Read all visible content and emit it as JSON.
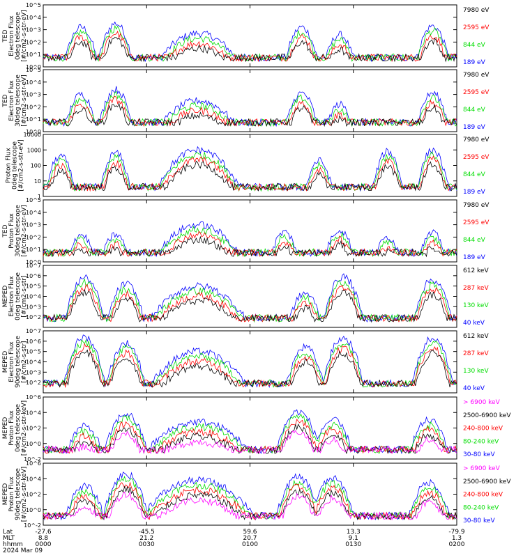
{
  "chart_data": {
    "type": "line",
    "date_label": "2024 Mar 09",
    "x_axis": {
      "row_labels": [
        "Lat",
        "MLT",
        "hhmm"
      ],
      "ticks": [
        {
          "lat": "-27.6",
          "mlt": "8.8",
          "hhmm": "0000"
        },
        {
          "lat": "-45.5",
          "mlt": "21.2",
          "hhmm": "0030"
        },
        {
          "lat": "59.6",
          "mlt": "20.7",
          "hhmm": "0100"
        },
        {
          "lat": "13.3",
          "mlt": "9.1",
          "hhmm": "0130"
        },
        {
          "lat": "-79.9",
          "mlt": "1.3",
          "hhmm": "0200"
        }
      ],
      "range_minutes": [
        0,
        120
      ]
    },
    "panels": [
      {
        "ylabel": [
          "TED",
          "Electron Flux",
          "0deg telescope",
          "[#/cm2-s-str-eV]"
        ],
        "scale": "log",
        "ylim": [
          1,
          100000
        ],
        "yticks": [
          {
            "v": 1,
            "t": "10^0"
          },
          {
            "v": 10,
            "t": "10^1"
          },
          {
            "v": 100,
            "t": "10^2"
          },
          {
            "v": 1000,
            "t": "10^3"
          },
          {
            "v": 10000,
            "t": "10^4"
          },
          {
            "v": 100000,
            "t": "10^5"
          }
        ],
        "series": [
          {
            "name": "7980 eV",
            "color": "#000000"
          },
          {
            "name": "2595 eV",
            "color": "#ff0000"
          },
          {
            "name": "844 eV",
            "color": "#00dd00"
          },
          {
            "name": "189 eV",
            "color": "#0000ff"
          }
        ]
      },
      {
        "ylabel": [
          "TED",
          "Electron Flux",
          "30deg telescope",
          "[#/cm2-s-str-eV]"
        ],
        "scale": "log",
        "ylim": [
          1,
          100000
        ],
        "yticks": [
          {
            "v": 1,
            "t": "10^0"
          },
          {
            "v": 10,
            "t": "10^1"
          },
          {
            "v": 100,
            "t": "10^2"
          },
          {
            "v": 1000,
            "t": "10^3"
          },
          {
            "v": 10000,
            "t": "10^4"
          },
          {
            "v": 100000,
            "t": "10^5"
          }
        ],
        "series": [
          {
            "name": "7980 eV",
            "color": "#000000"
          },
          {
            "name": "2595 eV",
            "color": "#ff0000"
          },
          {
            "name": "844 eV",
            "color": "#00dd00"
          },
          {
            "name": "189 eV",
            "color": "#0000ff"
          }
        ]
      },
      {
        "ylabel": [
          "Proton Flux",
          "0deg telescope",
          "[#/cm2-s-str-eV]"
        ],
        "scale": "log",
        "ylim": [
          1,
          10000
        ],
        "yticks": [
          {
            "v": 1,
            "t": "1"
          },
          {
            "v": 10,
            "t": "10"
          },
          {
            "v": 100,
            "t": "100"
          },
          {
            "v": 1000,
            "t": "1000"
          },
          {
            "v": 10000,
            "t": "10000"
          }
        ],
        "series": [
          {
            "name": "7980 eV",
            "color": "#000000"
          },
          {
            "name": "2595 eV",
            "color": "#ff0000"
          },
          {
            "name": "844 eV",
            "color": "#00dd00"
          },
          {
            "name": "189 eV",
            "color": "#0000ff"
          }
        ]
      },
      {
        "ylabel": [
          "TED",
          "Proton Flux",
          "30deg telescope",
          "[#/cm2-s-str-eV]"
        ],
        "scale": "log",
        "ylim": [
          1,
          100000
        ],
        "yticks": [
          {
            "v": 1,
            "t": "10^0"
          },
          {
            "v": 10,
            "t": "10^1"
          },
          {
            "v": 100,
            "t": "10^2"
          },
          {
            "v": 1000,
            "t": "10^3"
          },
          {
            "v": 10000,
            "t": "10^4"
          },
          {
            "v": 100000,
            "t": "10^5"
          }
        ],
        "series": [
          {
            "name": "7980 eV",
            "color": "#000000"
          },
          {
            "name": "2595 eV",
            "color": "#ff0000"
          },
          {
            "name": "844 eV",
            "color": "#00dd00"
          },
          {
            "name": "189 eV",
            "color": "#0000ff"
          }
        ]
      },
      {
        "ylabel": [
          "MEPED",
          "Electron Flux",
          "0deg telescope",
          "[#/cm2-s-str]"
        ],
        "scale": "log",
        "ylim": [
          10,
          10000000
        ],
        "yticks": [
          {
            "v": 100,
            "t": "10^2"
          },
          {
            "v": 1000,
            "t": "10^3"
          },
          {
            "v": 10000,
            "t": "10^4"
          },
          {
            "v": 100000,
            "t": "10^5"
          },
          {
            "v": 1000000,
            "t": "10^6"
          },
          {
            "v": 10000000,
            "t": "10^7"
          }
        ],
        "series": [
          {
            "name": "612 keV",
            "color": "#000000"
          },
          {
            "name": "287 keV",
            "color": "#ff0000"
          },
          {
            "name": "130 keV",
            "color": "#00dd00"
          },
          {
            "name": "40 keV",
            "color": "#0000ff"
          }
        ]
      },
      {
        "ylabel": [
          "MEPED",
          "Electron Flux",
          "90deg telescope",
          "[#/cm2-s-str]"
        ],
        "scale": "log",
        "ylim": [
          10,
          10000000
        ],
        "yticks": [
          {
            "v": 100,
            "t": "10^2"
          },
          {
            "v": 1000,
            "t": "10^3"
          },
          {
            "v": 10000,
            "t": "10^4"
          },
          {
            "v": 100000,
            "t": "10^5"
          },
          {
            "v": 1000000,
            "t": "10^6"
          },
          {
            "v": 10000000,
            "t": "10^7"
          }
        ],
        "series": [
          {
            "name": "612 keV",
            "color": "#000000"
          },
          {
            "name": "287 keV",
            "color": "#ff0000"
          },
          {
            "name": "130 keV",
            "color": "#00dd00"
          },
          {
            "name": "40 keV",
            "color": "#0000ff"
          }
        ]
      },
      {
        "ylabel": [
          "MEPED",
          "Proton Flux",
          "0deg telescope",
          "[#/cm2-s-str-keV]"
        ],
        "scale": "log",
        "ylim": [
          0.01,
          1000000
        ],
        "yticks": [
          {
            "v": 0.01,
            "t": "10^-2"
          },
          {
            "v": 1,
            "t": "10^0"
          },
          {
            "v": 100,
            "t": "10^2"
          },
          {
            "v": 10000,
            "t": "10^4"
          },
          {
            "v": 1000000,
            "t": "10^6"
          }
        ],
        "series": [
          {
            "name": "> 6900 keV",
            "color": "#ff00ff"
          },
          {
            "name": "2500-6900 keV",
            "color": "#000000"
          },
          {
            "name": "240-800 keV",
            "color": "#ff0000"
          },
          {
            "name": "80-240 keV",
            "color": "#00dd00"
          },
          {
            "name": "30-80 keV",
            "color": "#0000ff"
          }
        ]
      },
      {
        "ylabel": [
          "MEPED",
          "Proton Flux",
          "90deg telescope",
          "[#/cm2-s-str-keV]"
        ],
        "scale": "log",
        "ylim": [
          0.01,
          1000000
        ],
        "yticks": [
          {
            "v": 0.01,
            "t": "10^-2"
          },
          {
            "v": 1,
            "t": "10^0"
          },
          {
            "v": 100,
            "t": "10^2"
          },
          {
            "v": 10000,
            "t": "10^4"
          },
          {
            "v": 1000000,
            "t": "10^6"
          }
        ],
        "series": [
          {
            "name": "> 6900 keV",
            "color": "#ff00ff"
          },
          {
            "name": "2500-6900 keV",
            "color": "#000000"
          },
          {
            "name": "240-800 keV",
            "color": "#ff0000"
          },
          {
            "name": "80-240 keV",
            "color": "#00dd00"
          },
          {
            "name": "30-80 keV",
            "color": "#0000ff"
          }
        ]
      }
    ]
  }
}
